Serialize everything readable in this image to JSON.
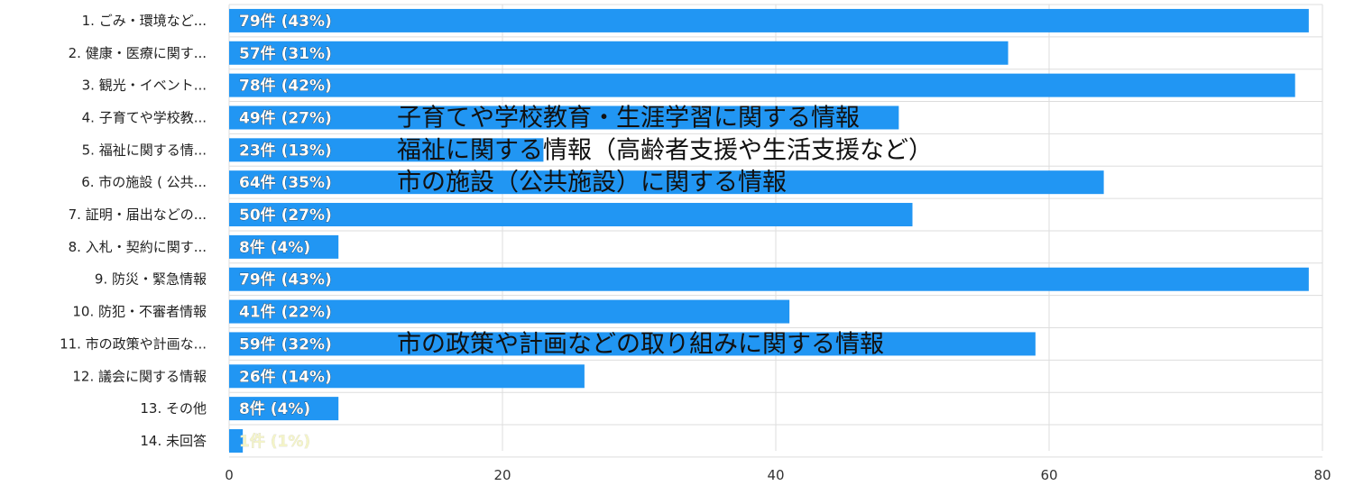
{
  "chart_data": {
    "type": "bar",
    "orientation": "horizontal",
    "categories": [
      "1. ごみ・環境など...",
      "2. 健康・医療に関す...",
      "3. 観光・イベント...",
      "4. 子育てや学校教...",
      "5. 福祉に関する情...",
      "6. 市の施設 ( 公共...",
      "7. 証明・届出などの...",
      "8. 入札・契約に関す...",
      "9. 防災・緊急情報",
      "10. 防犯・不審者情報",
      "11. 市の政策や計画な...",
      "12. 議会に関する情報",
      "13. その他",
      "14. 未回答"
    ],
    "values": [
      79,
      57,
      78,
      49,
      23,
      64,
      50,
      8,
      79,
      41,
      59,
      26,
      8,
      1
    ],
    "data_labels": [
      "79件 (43%)",
      "57件 (31%)",
      "78件 (42%)",
      "49件 (27%)",
      "23件 (13%)",
      "64件 (35%)",
      "50件 (27%)",
      "8件 (4%)",
      "79件 (43%)",
      "41件 (22%)",
      "59件 (32%)",
      "26件 (14%)",
      "8件 (4%)",
      "1件 (1%)"
    ],
    "xlim": [
      0,
      80
    ],
    "xticks": [
      "0",
      "20",
      "40",
      "60",
      "80"
    ],
    "grid": true,
    "bar_color": "#2196f3",
    "annotations": [
      {
        "category_index": 3,
        "text": "子育てや学校教育・生涯学習に関する情報"
      },
      {
        "category_index": 4,
        "text": "福祉に関する情報（高齢者支援や生活支援など）"
      },
      {
        "category_index": 5,
        "text": "市の施設（公共施設）に関する情報"
      },
      {
        "category_index": 10,
        "text": "市の政策や計画などの取り組みに関する情報"
      }
    ]
  }
}
